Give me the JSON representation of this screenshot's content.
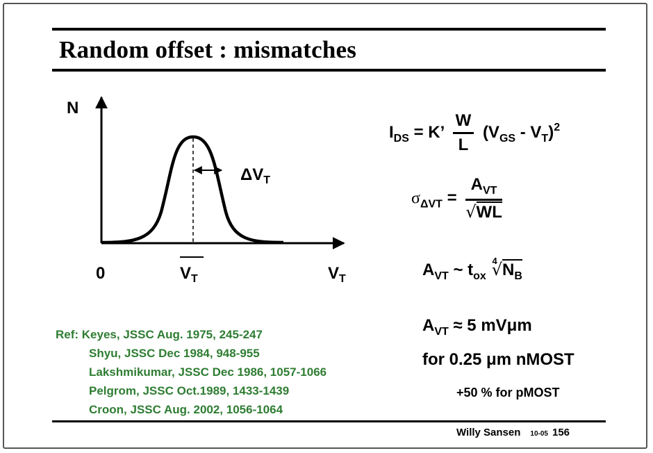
{
  "slide": {
    "title": "Random offset : mismatches",
    "plot": {
      "y_axis_label": "N",
      "origin_label": "0",
      "x_axis_label": "V",
      "x_axis_label_sub": "T",
      "mean_label": "V",
      "mean_label_sub": "T",
      "delta_label": "ΔV",
      "delta_label_sub": "T"
    },
    "equations": {
      "ids": {
        "lhs": "I",
        "lhs_sub": "DS",
        "eq_k": "= K’",
        "num": "W",
        "den": "L",
        "paren": "(V",
        "vgs_sub": "GS",
        "minus": "- V",
        "vt_sub": "T",
        "close": ")",
        "sq": "2"
      },
      "sigma": {
        "sym": "σ",
        "sub": "ΔVT",
        "eq": "=",
        "num": "A",
        "num_sub": "VT",
        "den": "WL"
      },
      "avt": {
        "a": "A",
        "a_sub": "VT",
        "tilde": "~ t",
        "t_sub": "ox",
        "root_index": "4",
        "n": "N",
        "n_sub": "B"
      },
      "value": {
        "a": "A",
        "a_sub": "VT",
        "rest": "≈ 5 mVμm"
      },
      "process": "for 0.25 μm nMOST",
      "pmos": "+50 % for pMOST"
    },
    "references": [
      "Ref: Keyes, JSSC Aug. 1975, 245-247",
      "Shyu, JSSC Dec 1984, 948-955",
      "Lakshmikumar, JSSC Dec 1986, 1057-1066",
      "Pelgrom, JSSC Oct.1989, 1433-1439",
      "Croon, JSSC Aug. 2002, 1056-1064"
    ],
    "footer": {
      "author": "Willy Sansen",
      "date": "10-05",
      "page": "156"
    }
  }
}
